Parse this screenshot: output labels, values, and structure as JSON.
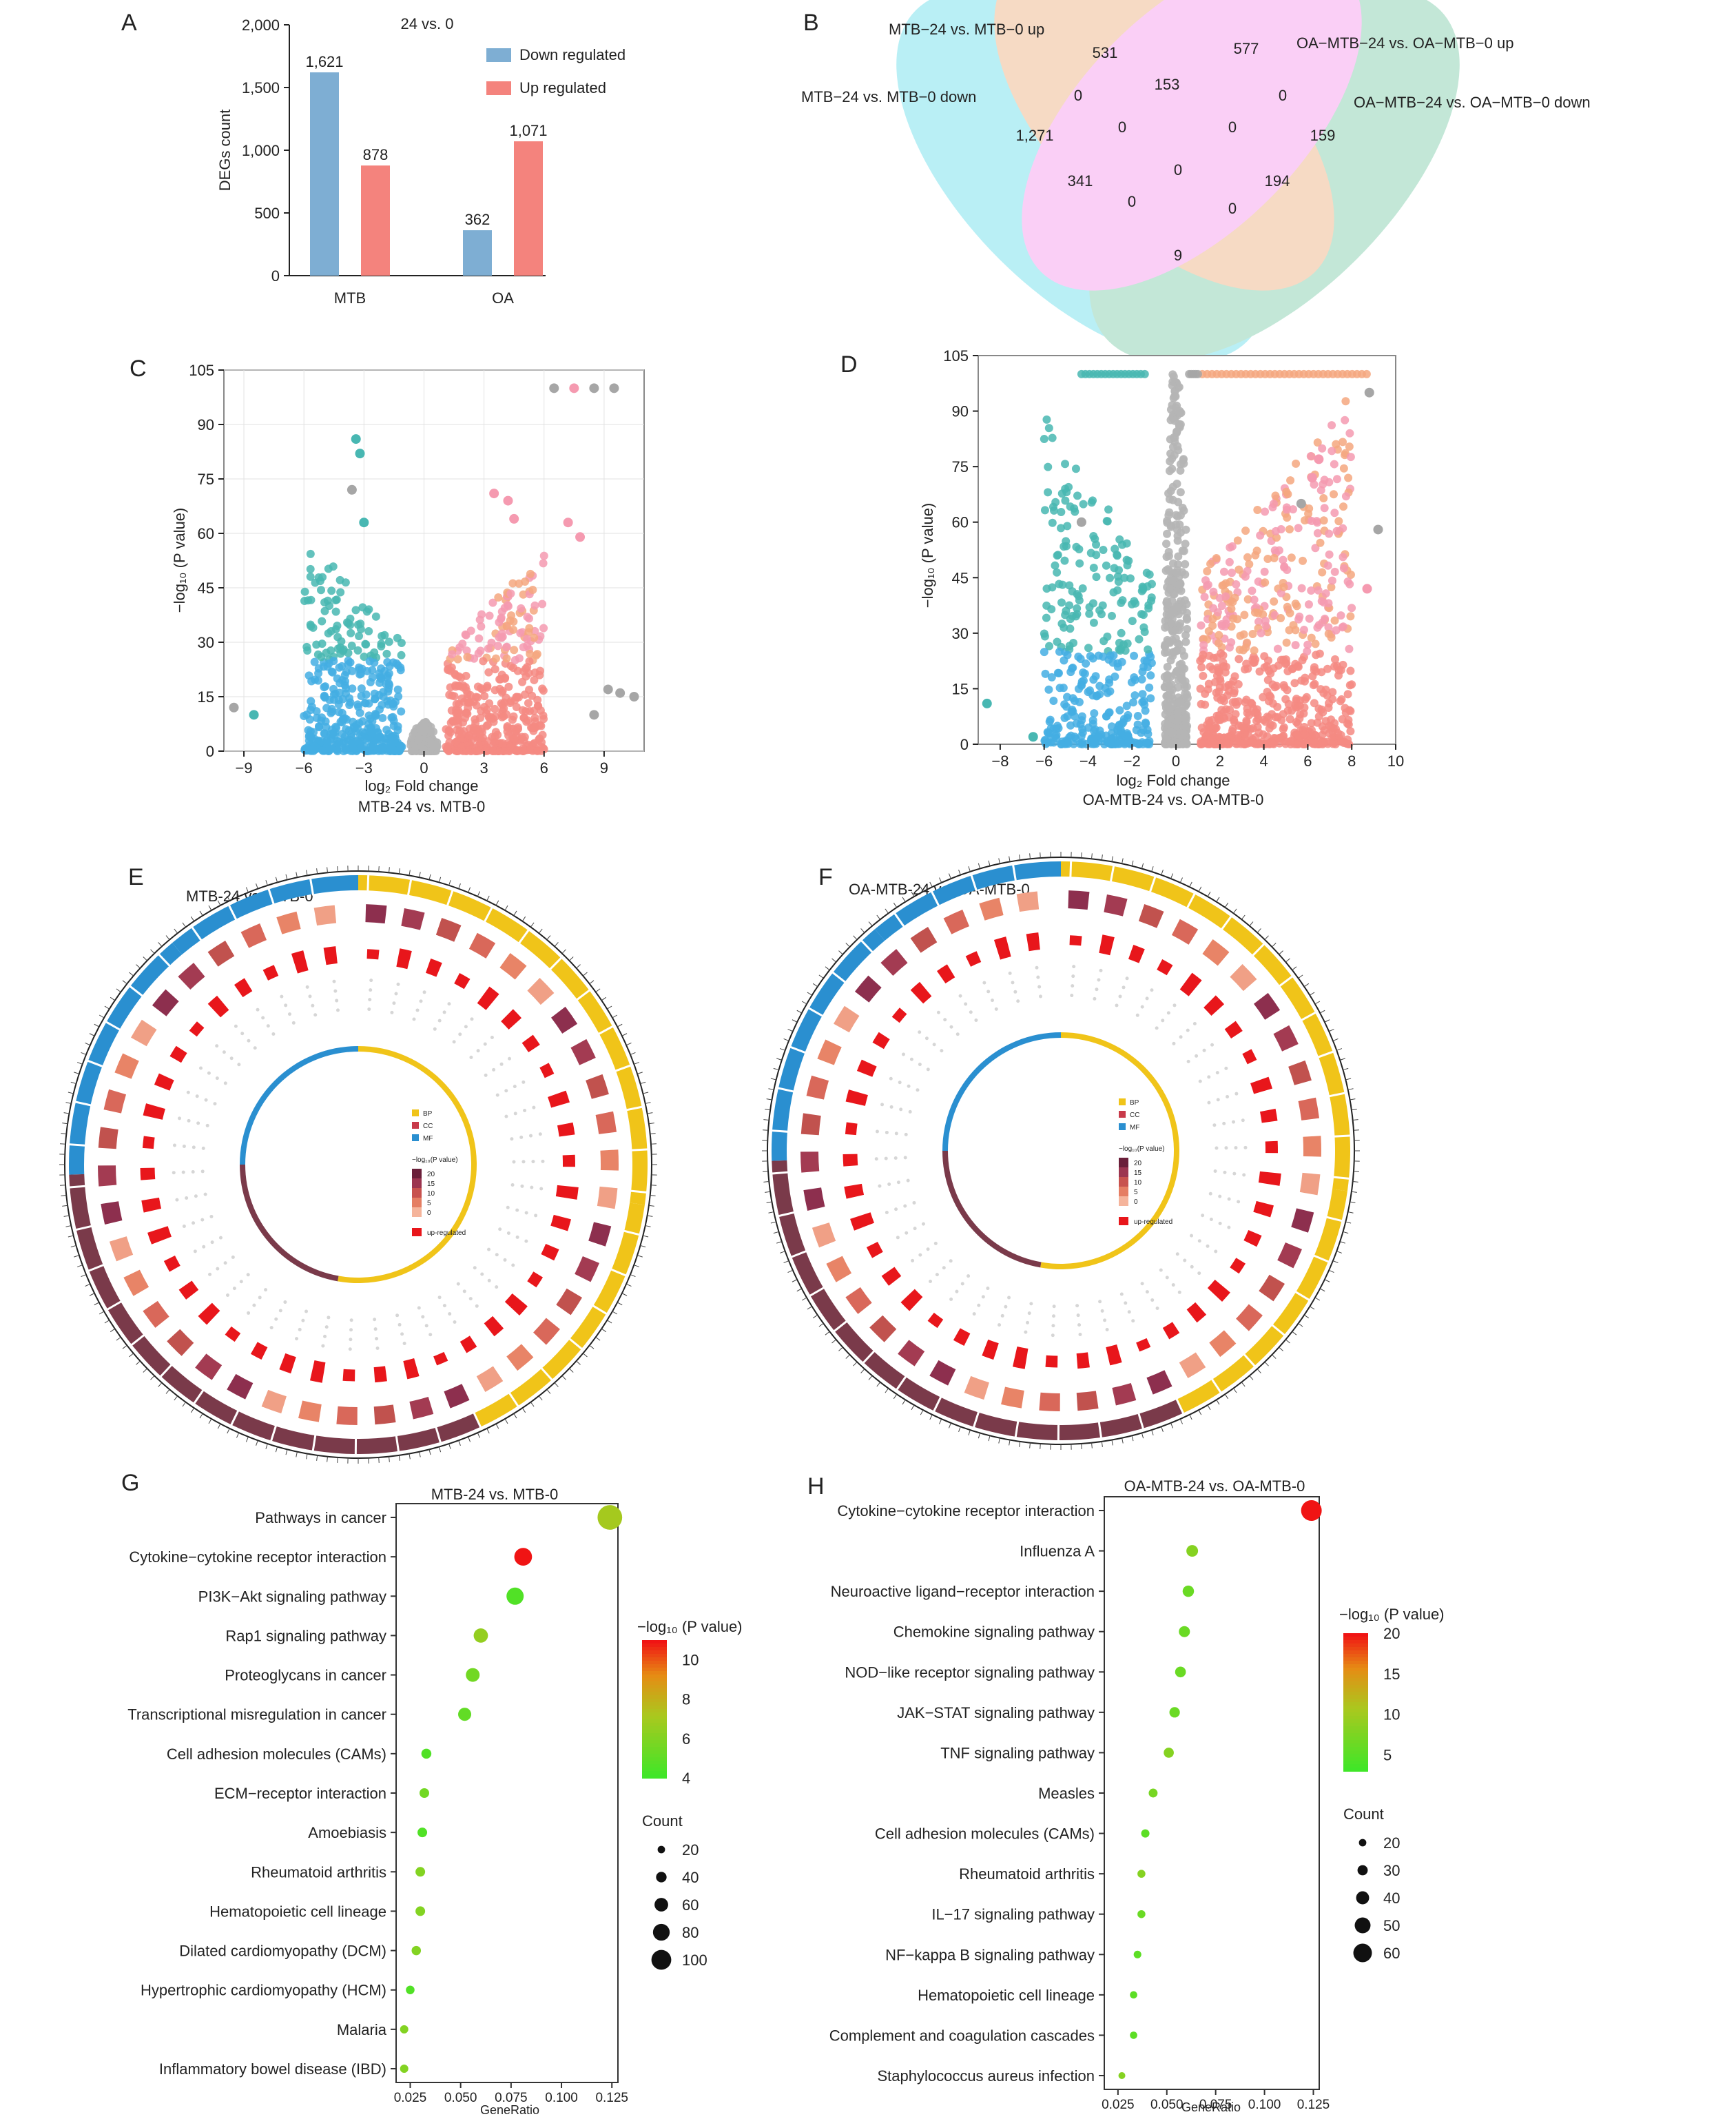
{
  "panels": [
    "A",
    "B",
    "C",
    "D",
    "E",
    "F",
    "G",
    "H"
  ],
  "chart_data": [
    {
      "id": "A",
      "type": "bar",
      "title": "24 vs. 0",
      "categories": [
        "MTB",
        "OA"
      ],
      "series": [
        {
          "name": "Down regulated",
          "color": "#7eaed3",
          "values": [
            1621,
            362
          ],
          "labels": [
            "1,621",
            "362"
          ]
        },
        {
          "name": "Up regulated",
          "color": "#f4837d",
          "values": [
            878,
            1071
          ],
          "labels": [
            "878",
            "1,071"
          ]
        }
      ],
      "ylabel": "DEGs count",
      "yticks": [
        "0",
        "500",
        "1,000",
        "1,500",
        "2,000"
      ],
      "ylim": [
        0,
        2000
      ]
    },
    {
      "id": "B",
      "type": "venn",
      "sets": [
        {
          "name": "MTB−24 vs. MTB−0 up",
          "color": "#f1c4a1"
        },
        {
          "name": "OA−MTB−24 vs. OA−MTB−0 up",
          "color": "#f7b3f2"
        },
        {
          "name": "MTB−24 vs. MTB−0 down",
          "color": "#8fe6ef"
        },
        {
          "name": "OA−MTB−24 vs. OA−MTB−0 down",
          "color": "#9fd9c0"
        }
      ],
      "counts": [
        "531",
        "577",
        "1,271",
        "159",
        "153",
        "0",
        "0",
        "0",
        "0",
        "0",
        "341",
        "194",
        "0",
        "0",
        "0",
        "9"
      ]
    },
    {
      "id": "C",
      "type": "scatter",
      "xlabel": "log₂ Fold change",
      "subtitle": "MTB-24 vs. MTB-0",
      "ylabel": "−log₁₀ (P value)",
      "xticks": [
        "−9",
        "−6",
        "−3",
        "0",
        "3",
        "6",
        "9"
      ],
      "yticks": [
        "0",
        "15",
        "30",
        "45",
        "60",
        "75",
        "90",
        "105"
      ],
      "xlim": [
        -10,
        11
      ],
      "ylim": [
        0,
        105
      ]
    },
    {
      "id": "D",
      "type": "scatter",
      "xlabel": "log₂ Fold change",
      "subtitle": "OA-MTB-24 vs. OA-MTB-0",
      "ylabel": "−log₁₀ (P value)",
      "xticks": [
        "−8",
        "−6",
        "−4",
        "−2",
        "0",
        "2",
        "4",
        "6",
        "8",
        "10"
      ],
      "yticks": [
        "0",
        "15",
        "30",
        "45",
        "60",
        "75",
        "90",
        "105"
      ],
      "xlim": [
        -9,
        10
      ],
      "ylim": [
        0,
        105
      ]
    },
    {
      "id": "E",
      "type": "circular",
      "subtitle": "MTB-24 vs. MTB-0",
      "legend": [
        "BP",
        "CC",
        "MF",
        "−log₁₀(P value)",
        "20",
        "15",
        "10",
        "5",
        "0",
        "up-regulated"
      ]
    },
    {
      "id": "F",
      "type": "circular",
      "subtitle": "OA-MTB-24 vs. OA-MTB-0",
      "legend": [
        "BP",
        "CC",
        "MF",
        "−log₁₀(P value)",
        "20",
        "15",
        "10",
        "5",
        "0",
        "up-regulated"
      ]
    },
    {
      "id": "G",
      "type": "scatter",
      "title": "MTB-24 vs. MTB-0",
      "xlabel": "GeneRatio",
      "xticks": [
        "0.025",
        "0.050",
        "0.075",
        "0.100",
        "0.125"
      ],
      "xlim": [
        0.018,
        0.128
      ],
      "color_title": "−log₁₀ (P value)",
      "color_ticks": [
        "10",
        "8",
        "6",
        "4"
      ],
      "color_range": [
        4,
        11
      ],
      "size_title": "Count",
      "size_ticks": [
        "20",
        "40",
        "60",
        "80",
        "100"
      ],
      "size_range": [
        20,
        100
      ],
      "terms": [
        "Pathways in cancer",
        "Cytokine−cytokine receptor interaction",
        "PI3K−Akt signaling pathway",
        "Rap1 signaling pathway",
        "Proteoglycans in cancer",
        "Transcriptional misregulation in cancer",
        "Cell adhesion molecules (CAMs)",
        "ECM−receptor interaction",
        "Amoebiasis",
        "Rheumatoid arthritis",
        "Hematopoietic cell lineage",
        "Dilated cardiomyopathy (DCM)",
        "Hypertrophic cardiomyopathy (HCM)",
        "Malaria",
        "Inflammatory bowel disease (IBD)"
      ],
      "x": [
        0.124,
        0.081,
        0.077,
        0.06,
        0.056,
        0.052,
        0.033,
        0.032,
        0.031,
        0.03,
        0.03,
        0.028,
        0.025,
        0.022,
        0.022
      ],
      "color_values": [
        7,
        11,
        4.5,
        6.5,
        5.5,
        5,
        4.5,
        5.5,
        4.5,
        6,
        6,
        6,
        4.5,
        6,
        6
      ],
      "count_values": [
        115,
        75,
        72,
        55,
        52,
        48,
        30,
        28,
        28,
        28,
        28,
        26,
        22,
        20,
        20
      ]
    },
    {
      "id": "H",
      "type": "scatter",
      "title": "OA-MTB-24 vs. OA-MTB-0",
      "xlabel": "GeneRatio",
      "xticks": [
        "0.025",
        "0.050",
        "0.075",
        "0.100",
        "0.125"
      ],
      "xlim": [
        0.018,
        0.128
      ],
      "color_title": "−log₁₀ (P value)",
      "color_ticks": [
        "20",
        "15",
        "10",
        "5"
      ],
      "color_range": [
        3,
        20
      ],
      "size_title": "Count",
      "size_ticks": [
        "20",
        "30",
        "40",
        "50",
        "60"
      ],
      "size_range": [
        20,
        60
      ],
      "terms": [
        "Cytokine−cytokine receptor interaction",
        "Influenza A",
        "Neuroactive ligand−receptor interaction",
        "Chemokine signaling pathway",
        "NOD−like receptor signaling pathway",
        "JAK−STAT signaling pathway",
        "TNF signaling pathway",
        "Measles",
        "Cell adhesion molecules (CAMs)",
        "Rheumatoid arthritis",
        "IL−17 signaling pathway",
        "NF−kappa B signaling pathway",
        "Hematopoietic cell lineage",
        "Complement and coagulation cascades",
        "Staphylococcus aureus infection"
      ],
      "x": [
        0.124,
        0.063,
        0.061,
        0.059,
        0.057,
        0.054,
        0.051,
        0.043,
        0.039,
        0.037,
        0.037,
        0.035,
        0.033,
        0.033,
        0.027
      ],
      "color_values": [
        20,
        8,
        6,
        6,
        6,
        6,
        8,
        7,
        5,
        8,
        6,
        5,
        5,
        5,
        8
      ],
      "count_values": [
        60,
        31,
        30,
        29,
        28,
        27,
        26,
        22,
        20,
        19,
        19,
        18,
        17,
        17,
        14
      ]
    }
  ]
}
